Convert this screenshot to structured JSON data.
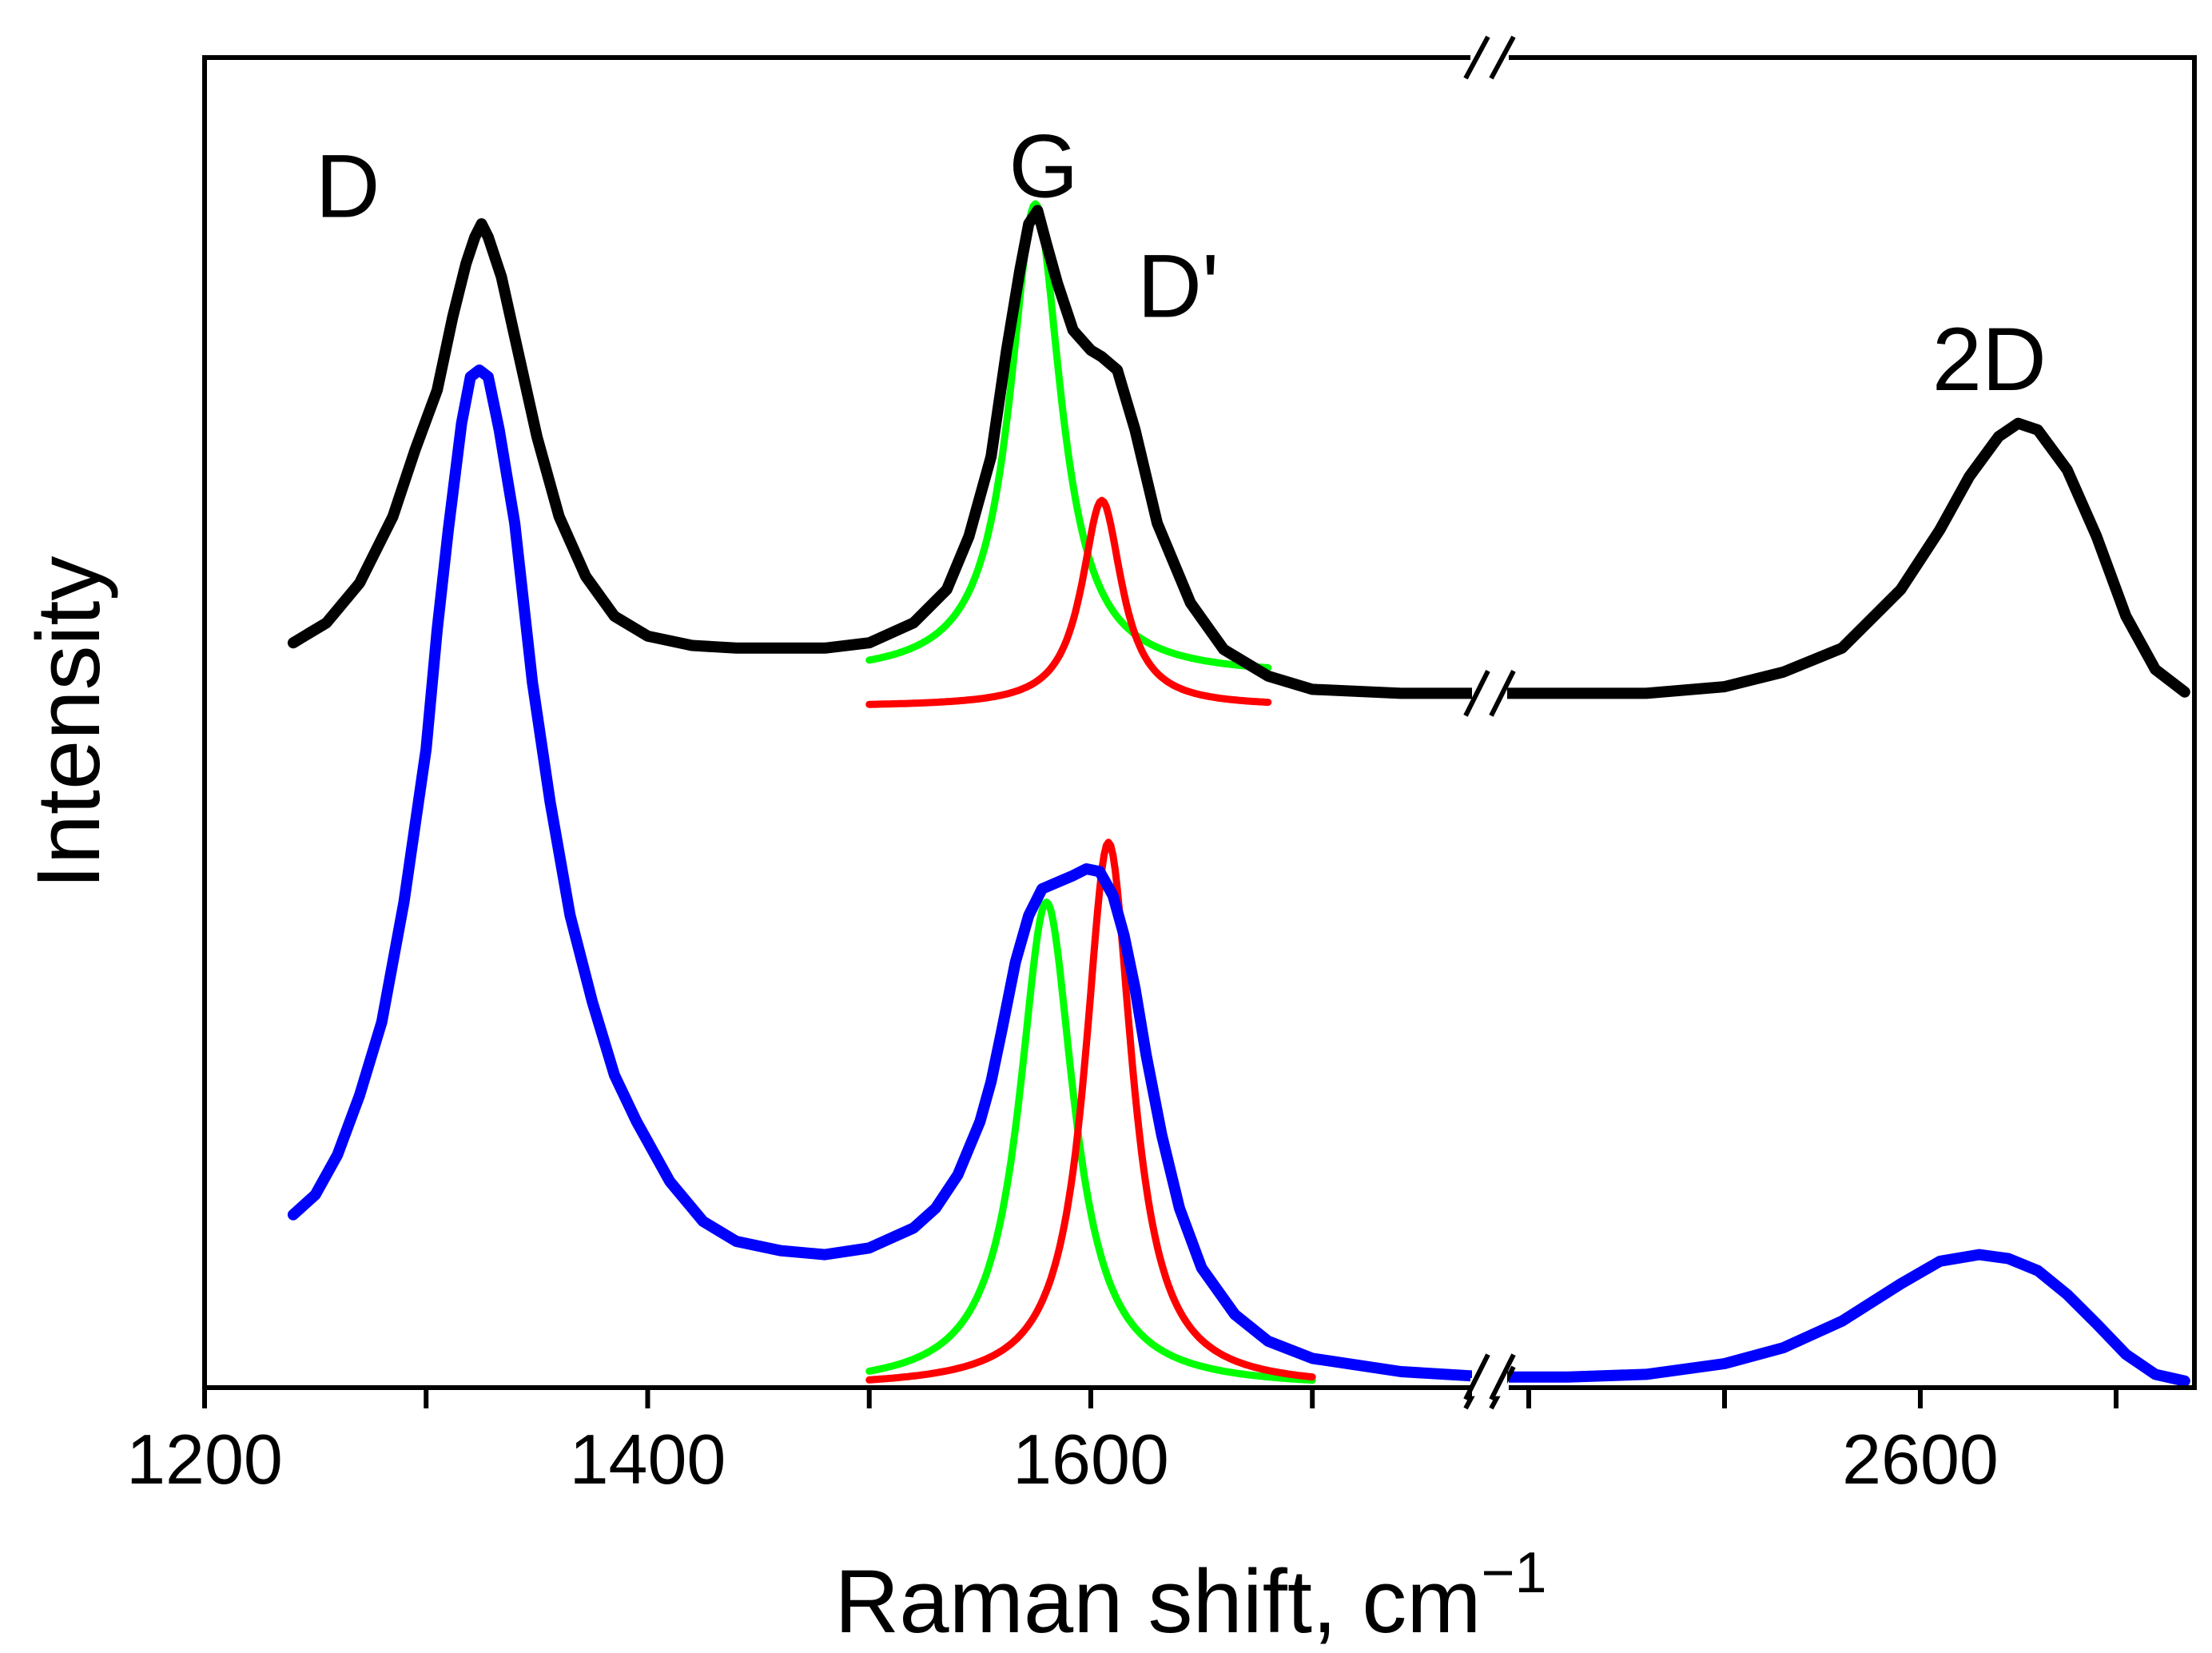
{
  "chart_data": {
    "type": "line",
    "title": "",
    "xlabel": "Raman shift, cm",
    "xlabel_superscript": "−1",
    "ylabel": "Intensity",
    "x_axis": {
      "broken": true,
      "segments": [
        {
          "xlim": [
            1200,
            1780
          ],
          "ticks": [
            1200,
            1300,
            1400,
            1500,
            1600,
            1700
          ],
          "labeled": [
            1200,
            1400,
            1600
          ]
        },
        {
          "xlim": [
            2380,
            2740
          ],
          "ticks": [
            2400,
            2500,
            2600,
            2700
          ],
          "labeled": [
            2600
          ]
        }
      ]
    },
    "ylim": [
      0,
      1
    ],
    "y_ticks": "none",
    "colors": {
      "top": "#000000",
      "bottom": "#0000ff",
      "g_fit": "#00ff00",
      "dprime_fit": "#ff0000"
    },
    "peak_labels": [
      {
        "text": "D",
        "x": 1250,
        "y": 0.88
      },
      {
        "text": "G",
        "x": 1563,
        "y": 0.895
      },
      {
        "text": "D'",
        "x": 1621,
        "y": 0.805
      },
      {
        "text": "2D",
        "x": 2606,
        "y": 0.75
      }
    ],
    "series": [
      {
        "name": "top-spectrum",
        "color": "#000000",
        "x": [
          1240,
          1255,
          1270,
          1285,
          1295,
          1305,
          1312,
          1318,
          1322,
          1325,
          1328,
          1334,
          1340,
          1350,
          1360,
          1372,
          1385,
          1400,
          1420,
          1440,
          1460,
          1480,
          1500,
          1520,
          1535,
          1545,
          1555,
          1562,
          1568,
          1572,
          1576,
          1580,
          1585,
          1592,
          1600,
          1605,
          1612,
          1620,
          1630,
          1645,
          1660,
          1680,
          1700,
          1740,
          1780,
          2380,
          2420,
          2460,
          2500,
          2530,
          2560,
          2590,
          2610,
          2625,
          2640,
          2650,
          2660,
          2675,
          2690,
          2705,
          2720,
          2735
        ],
        "y": [
          0.56,
          0.575,
          0.605,
          0.655,
          0.705,
          0.75,
          0.805,
          0.845,
          0.865,
          0.875,
          0.865,
          0.835,
          0.79,
          0.715,
          0.655,
          0.61,
          0.58,
          0.565,
          0.558,
          0.556,
          0.556,
          0.556,
          0.56,
          0.575,
          0.6,
          0.64,
          0.7,
          0.78,
          0.84,
          0.875,
          0.885,
          0.86,
          0.83,
          0.795,
          0.78,
          0.775,
          0.765,
          0.72,
          0.65,
          0.59,
          0.555,
          0.535,
          0.525,
          0.522,
          0.522,
          0.522,
          0.522,
          0.522,
          0.527,
          0.538,
          0.556,
          0.6,
          0.645,
          0.685,
          0.715,
          0.725,
          0.72,
          0.69,
          0.64,
          0.58,
          0.54,
          0.523
        ]
      },
      {
        "name": "bottom-spectrum",
        "color": "#0000ff",
        "x": [
          1240,
          1250,
          1260,
          1270,
          1280,
          1290,
          1300,
          1305,
          1310,
          1316,
          1320,
          1324,
          1328,
          1333,
          1340,
          1348,
          1356,
          1365,
          1375,
          1385,
          1395,
          1410,
          1425,
          1440,
          1460,
          1480,
          1500,
          1520,
          1530,
          1540,
          1550,
          1555,
          1560,
          1566,
          1572,
          1578,
          1585,
          1592,
          1598,
          1604,
          1610,
          1615,
          1620,
          1625,
          1632,
          1640,
          1650,
          1665,
          1680,
          1700,
          1740,
          1780,
          2380,
          2420,
          2460,
          2500,
          2530,
          2560,
          2590,
          2610,
          2630,
          2645,
          2660,
          2675,
          2690,
          2705,
          2720,
          2735
        ],
        "y": [
          0.13,
          0.145,
          0.175,
          0.22,
          0.275,
          0.365,
          0.48,
          0.57,
          0.645,
          0.725,
          0.76,
          0.765,
          0.76,
          0.72,
          0.65,
          0.53,
          0.44,
          0.355,
          0.29,
          0.235,
          0.2,
          0.155,
          0.125,
          0.11,
          0.103,
          0.1,
          0.105,
          0.12,
          0.135,
          0.16,
          0.2,
          0.23,
          0.27,
          0.32,
          0.355,
          0.375,
          0.38,
          0.385,
          0.39,
          0.388,
          0.37,
          0.34,
          0.3,
          0.25,
          0.19,
          0.135,
          0.09,
          0.055,
          0.035,
          0.022,
          0.012,
          0.008,
          0.008,
          0.008,
          0.01,
          0.018,
          0.03,
          0.05,
          0.078,
          0.095,
          0.1,
          0.097,
          0.088,
          0.07,
          0.048,
          0.025,
          0.01,
          0.005
        ]
      },
      {
        "name": "top-G-fit",
        "color": "#00ff00",
        "peak": 1575,
        "hwhm": 14,
        "baseline": 0.535,
        "height": 0.355,
        "range": [
          1500,
          1680
        ]
      },
      {
        "name": "top-Dprime-fit",
        "color": "#ff0000",
        "peak": 1605,
        "hwhm": 11,
        "baseline": 0.512,
        "height": 0.155,
        "range": [
          1500,
          1680
        ]
      },
      {
        "name": "bottom-G-fit",
        "color": "#00ff00",
        "peak": 1580,
        "hwhm": 15,
        "baseline": 0.0,
        "height": 0.365,
        "range": [
          1500,
          1700
        ]
      },
      {
        "name": "bottom-Dprime-fit",
        "color": "#ff0000",
        "peak": 1608,
        "hwhm": 13,
        "baseline": 0.0,
        "height": 0.41,
        "range": [
          1500,
          1700
        ]
      }
    ]
  }
}
